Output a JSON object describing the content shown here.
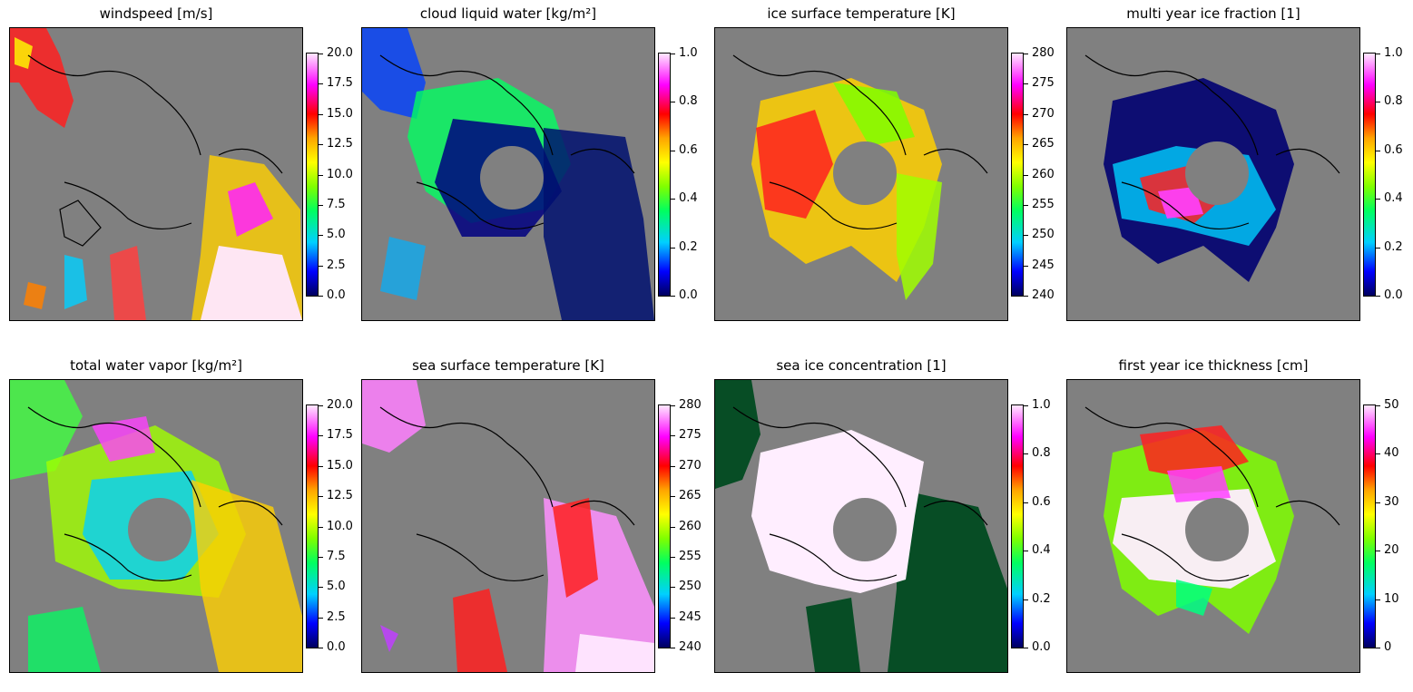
{
  "colorbar_colors": [
    "#00005e",
    "#0000ff",
    "#00d0ff",
    "#00ff60",
    "#7fff00",
    "#ffff00",
    "#ffa500",
    "#ff0000",
    "#ff00ff",
    "#ffe8ff"
  ],
  "land_color": "#808080",
  "chart_data": [
    {
      "type": "heatmap",
      "title": "windspeed [m/s]",
      "colorbar_range": [
        0,
        20
      ],
      "colorbar_ticks": [
        "0.0",
        "2.5",
        "5.0",
        "7.5",
        "10.0",
        "12.5",
        "15.0",
        "17.5",
        "20.0"
      ],
      "has_pole_hole": false
    },
    {
      "type": "heatmap",
      "title": "cloud liquid water [kg/m²]",
      "colorbar_range": [
        0,
        1
      ],
      "colorbar_ticks": [
        "0.0",
        "0.2",
        "0.4",
        "0.6",
        "0.8",
        "1.0"
      ],
      "has_pole_hole": true
    },
    {
      "type": "heatmap",
      "title": "ice surface temperature [K]",
      "colorbar_range": [
        240,
        280
      ],
      "colorbar_ticks": [
        "240",
        "245",
        "250",
        "255",
        "260",
        "265",
        "270",
        "275",
        "280"
      ],
      "has_pole_hole": true
    },
    {
      "type": "heatmap",
      "title": "multi year ice fraction [1]",
      "colorbar_range": [
        0,
        1
      ],
      "colorbar_ticks": [
        "0.0",
        "0.2",
        "0.4",
        "0.6",
        "0.8",
        "1.0"
      ],
      "has_pole_hole": true
    },
    {
      "type": "heatmap",
      "title": "total water vapor [kg/m²]",
      "colorbar_range": [
        0,
        20
      ],
      "colorbar_ticks": [
        "0.0",
        "2.5",
        "5.0",
        "7.5",
        "10.0",
        "12.5",
        "15.0",
        "17.5",
        "20.0"
      ],
      "has_pole_hole": true
    },
    {
      "type": "heatmap",
      "title": "sea surface temperature [K]",
      "colorbar_range": [
        240,
        280
      ],
      "colorbar_ticks": [
        "240",
        "245",
        "250",
        "255",
        "260",
        "265",
        "270",
        "275",
        "280"
      ],
      "has_pole_hole": false
    },
    {
      "type": "heatmap",
      "title": "sea ice concentration [1]",
      "colorbar_range": [
        0,
        1
      ],
      "colorbar_ticks": [
        "0.0",
        "0.2",
        "0.4",
        "0.6",
        "0.8",
        "1.0"
      ],
      "has_pole_hole": true
    },
    {
      "type": "heatmap",
      "title": "first year ice thickness [cm]",
      "colorbar_range": [
        0,
        50
      ],
      "colorbar_ticks": [
        "0",
        "10",
        "20",
        "30",
        "40",
        "50"
      ],
      "has_pole_hole": true
    }
  ]
}
